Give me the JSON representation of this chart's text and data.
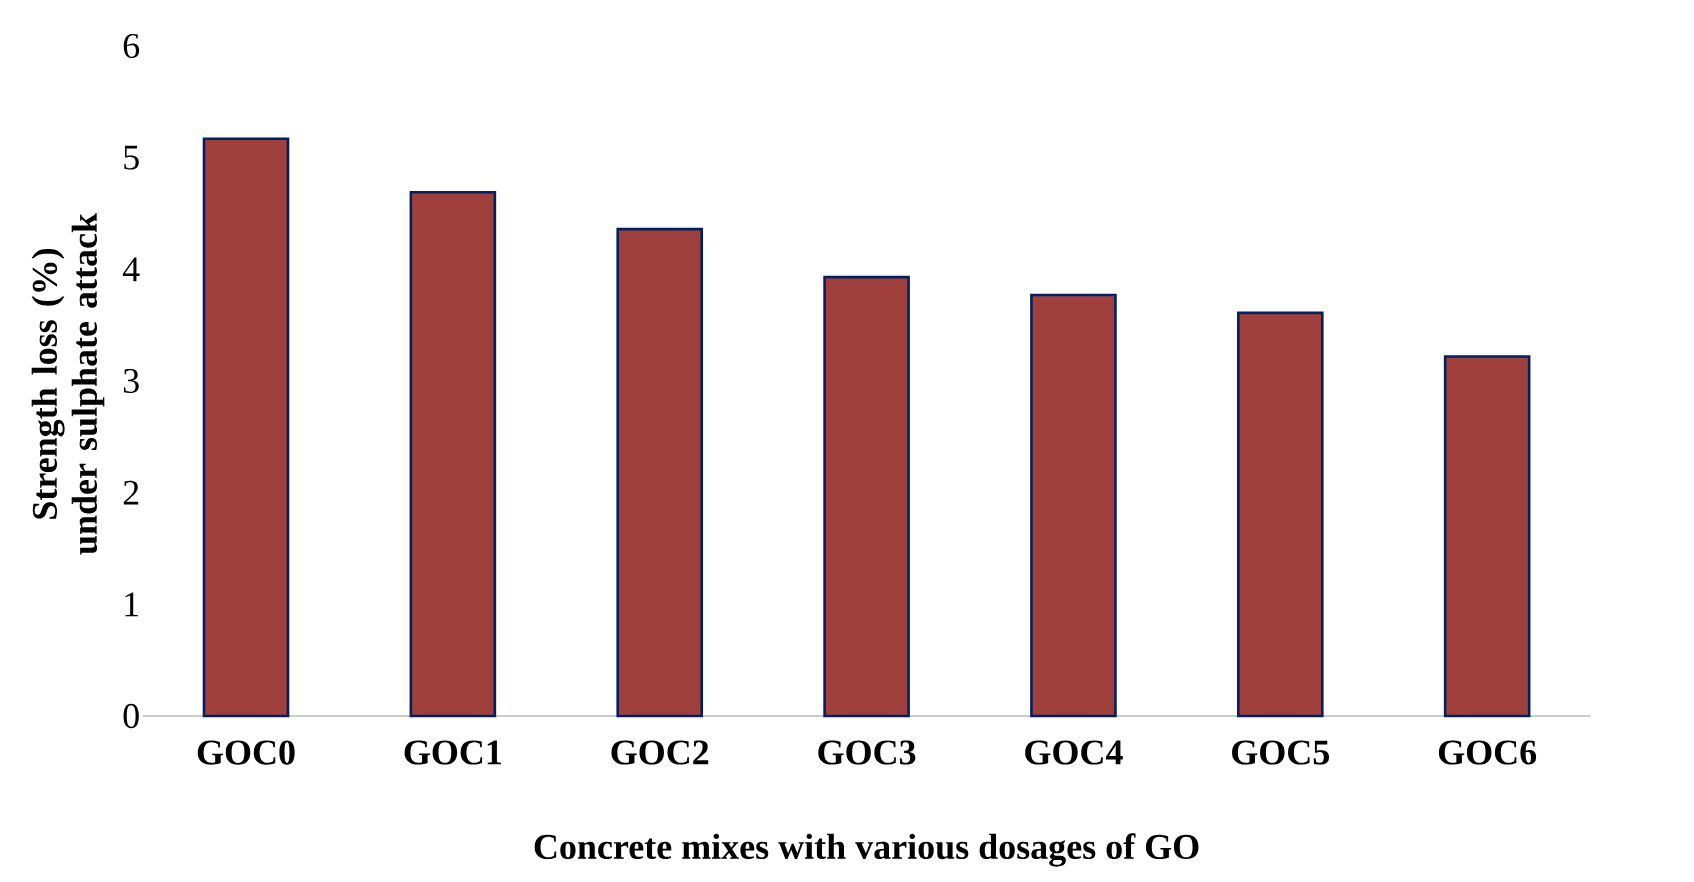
{
  "chart_data": {
    "type": "bar",
    "xlabel": "Concrete mixes with various dosages of GO",
    "ylabel": "Strength loss (%) under sulphate attack",
    "categories": [
      "GOC0",
      "GOC1",
      "GOC2",
      "GOC3",
      "GOC4",
      "GOC5",
      "GOC6"
    ],
    "values": [
      5.17,
      4.69,
      4.36,
      3.93,
      3.77,
      3.61,
      3.22
    ],
    "color": "#a0403c",
    "ylim": [
      0,
      6
    ],
    "yticks": [
      0,
      1,
      2,
      3,
      4,
      5,
      6
    ]
  }
}
